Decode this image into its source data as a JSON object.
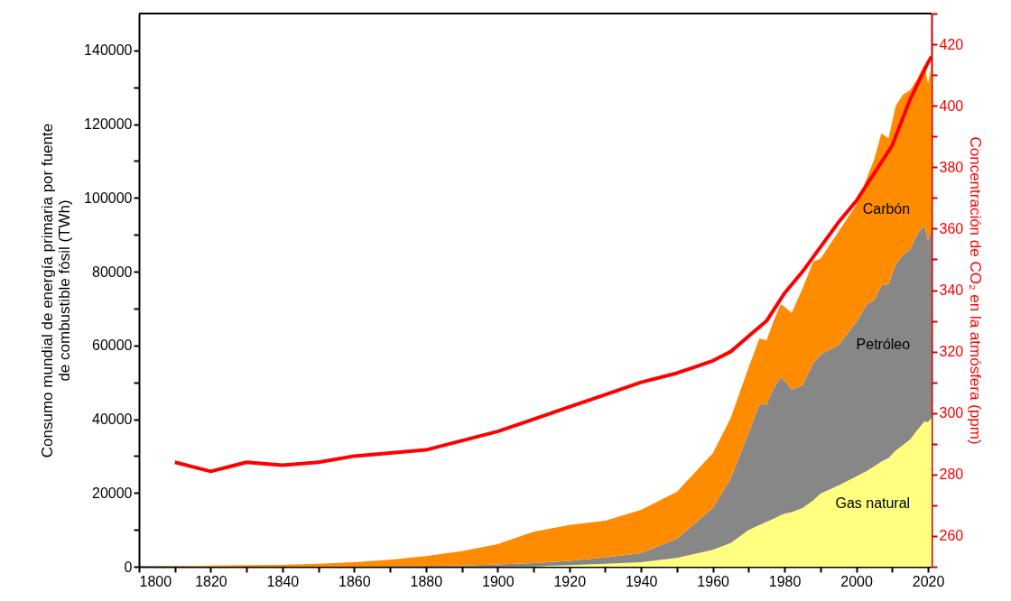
{
  "chart_data": {
    "type": "area",
    "stacked": true,
    "ylabel": "Consumo mundial de energía primaria por fuente\nde combustible fósil (TWh)",
    "y2label": "Concentración de CO₂ en la atmósfera (ppm)",
    "x": [
      1800,
      1810,
      1820,
      1830,
      1840,
      1850,
      1860,
      1870,
      1880,
      1890,
      1900,
      1910,
      1920,
      1930,
      1940,
      1950,
      1960,
      1965,
      1970,
      1973,
      1975,
      1977,
      1979,
      1980,
      1982,
      1985,
      1988,
      1990,
      1995,
      2000,
      2003,
      2005,
      2007,
      2009,
      2011,
      2013,
      2015,
      2017,
      2019,
      2020,
      2021
    ],
    "series": [
      {
        "name": "Gas natural",
        "color": "#ffff80",
        "values": [
          0,
          0,
          0,
          0,
          0,
          0,
          0,
          0,
          0,
          0,
          0,
          100,
          400,
          800,
          1200,
          2400,
          4600,
          6400,
          10000,
          11300,
          12200,
          13000,
          14000,
          14400,
          14800,
          15900,
          18000,
          19800,
          22000,
          24500,
          26000,
          27200,
          28500,
          29500,
          31500,
          33000,
          34500,
          37000,
          39400,
          39200,
          40400
        ]
      },
      {
        "name": "Petróleo",
        "color": "#878787",
        "values": [
          0,
          0,
          0,
          0,
          0,
          0,
          0,
          100,
          200,
          300,
          600,
          900,
          1200,
          1700,
          2500,
          5200,
          11300,
          17600,
          26200,
          32700,
          31800,
          35500,
          37400,
          36000,
          33200,
          33300,
          37100,
          37700,
          38000,
          41800,
          45200,
          45000,
          47800,
          47100,
          50500,
          51400,
          51500,
          53100,
          53100,
          49200,
          51400
        ]
      },
      {
        "name": "Carbón",
        "color": "#ff8c00",
        "values": [
          0,
          100,
          300,
          400,
          500,
          800,
          1200,
          1800,
          2700,
          3900,
          5500,
          8500,
          9700,
          10000,
          11700,
          12700,
          14900,
          16400,
          17900,
          17900,
          17400,
          18300,
          19800,
          20100,
          20800,
          26200,
          27600,
          26000,
          30800,
          31800,
          34300,
          38200,
          41200,
          39600,
          43000,
          43600,
          43200,
          42100,
          43600,
          42500,
          44200
        ]
      },
      {
        "type": "line",
        "axis": "y2",
        "color": "#ff0000",
        "x": [
          1810,
          1820,
          1830,
          1840,
          1850,
          1860,
          1870,
          1880,
          1890,
          1900,
          1910,
          1920,
          1930,
          1940,
          1950,
          1960,
          1965,
          1970,
          1975,
          1980,
          1985,
          1990,
          1995,
          2000,
          2005,
          2010,
          2015,
          2020,
          2021
        ],
        "values": [
          284,
          281,
          284,
          283,
          284,
          286,
          287,
          288,
          291,
          294,
          298,
          302,
          306,
          310,
          313,
          317,
          320,
          325,
          330,
          339,
          346,
          354,
          362,
          369,
          378,
          387,
          402,
          414,
          416
        ]
      }
    ],
    "xlim": [
      1800,
      2021
    ],
    "xticks": [
      1800,
      {
        "value": 1810,
        "label": null
      },
      1820,
      {
        "value": 1830,
        "label": null
      },
      1840,
      {
        "value": 1850,
        "label": null
      },
      1860,
      {
        "value": 1870,
        "label": null
      },
      1880,
      {
        "value": 1890,
        "label": null
      },
      1900,
      {
        "value": 1910,
        "label": null
      },
      1920,
      {
        "value": 1930,
        "label": null
      },
      1940,
      {
        "value": 1950,
        "label": null
      },
      1960,
      {
        "value": 1970,
        "label": null
      },
      1980,
      {
        "value": 1990,
        "label": null
      },
      2000,
      {
        "value": 2010,
        "label": null
      },
      2020
    ],
    "ylim": [
      0,
      150000
    ],
    "yticks": [
      0,
      {
        "value": 10000,
        "label": null
      },
      20000,
      {
        "value": 30000,
        "label": null
      },
      40000,
      {
        "value": 50000,
        "label": null
      },
      60000,
      {
        "value": 70000,
        "label": null
      },
      80000,
      {
        "value": 90000,
        "label": null
      },
      100000,
      {
        "value": 110000,
        "label": null
      },
      120000,
      {
        "value": 130000,
        "label": null
      },
      140000
    ],
    "y2lim": [
      250,
      430
    ],
    "y2ticks": [
      {
        "value": 250,
        "label": null
      },
      260,
      {
        "value": 270,
        "label": null
      },
      280,
      {
        "value": 290,
        "label": null
      },
      300,
      {
        "value": 310,
        "label": null
      },
      320,
      {
        "value": 330,
        "label": null
      },
      340,
      {
        "value": 350,
        "label": null
      },
      360,
      {
        "value": 370,
        "label": null
      },
      380,
      {
        "value": 390,
        "label": null
      },
      400,
      {
        "value": 410,
        "label": null
      },
      420,
      {
        "value": 430,
        "label": null
      }
    ]
  }
}
